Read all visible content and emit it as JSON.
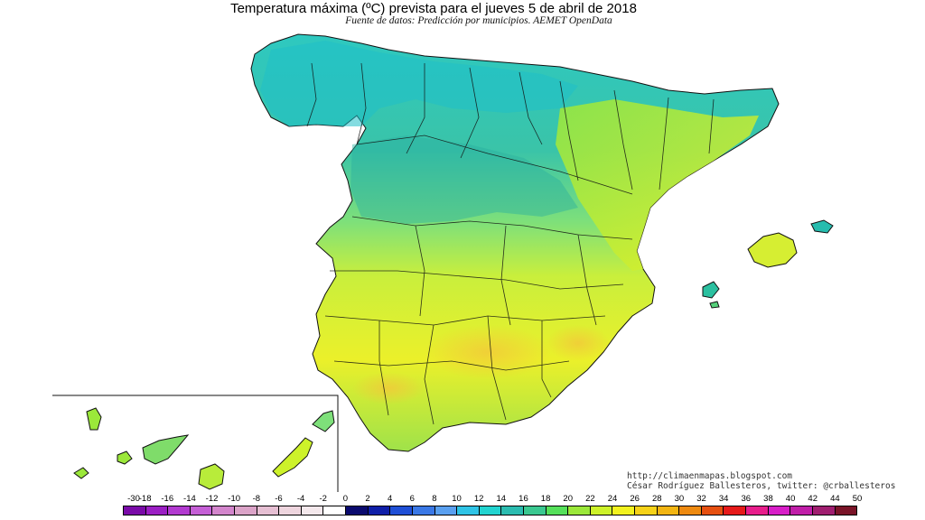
{
  "title": "Temperatura máxima (ºC) prevista para el jueves 5 de abril de 2018",
  "subtitle": "Fuente de datos: Predicción por municipios. AEMET OpenData",
  "credits": {
    "url": "http://climaenmapas.blogspot.com",
    "author": "César Rodríguez Ballesteros, twitter: @crballesteros"
  },
  "map": {
    "regions": [
      "Península Ibérica",
      "Islas Baleares",
      "Islas Canarias"
    ],
    "inset": "Islas Canarias"
  },
  "legend": {
    "ticks": [
      "-30",
      "-18",
      "-16",
      "-14",
      "-12",
      "-10",
      "-8",
      "-6",
      "-4",
      "-2",
      "0",
      "2",
      "4",
      "6",
      "8",
      "10",
      "12",
      "14",
      "16",
      "18",
      "20",
      "22",
      "24",
      "26",
      "28",
      "30",
      "32",
      "34",
      "36",
      "38",
      "40",
      "42",
      "44",
      "50"
    ],
    "colors": [
      "#7a0aa8",
      "#9b1fc4",
      "#b23ad0",
      "#c55fd6",
      "#d385cc",
      "#dba3c8",
      "#e6bfd3",
      "#eed5de",
      "#f4e8ec",
      "#ffffff",
      "#0a0a6e",
      "#0f1fa8",
      "#1f4fd6",
      "#3a78e6",
      "#5aa0f0",
      "#2fc4e6",
      "#22d4d0",
      "#2bbcb0",
      "#3ac890",
      "#55e05a",
      "#9be83a",
      "#cdf22a",
      "#f2f21f",
      "#f6d218",
      "#f2b512",
      "#ee8a10",
      "#e65010",
      "#e61a1a",
      "#e81e8c",
      "#d81ec8",
      "#c01ea8",
      "#a01e70",
      "#7a1428"
    ]
  }
}
